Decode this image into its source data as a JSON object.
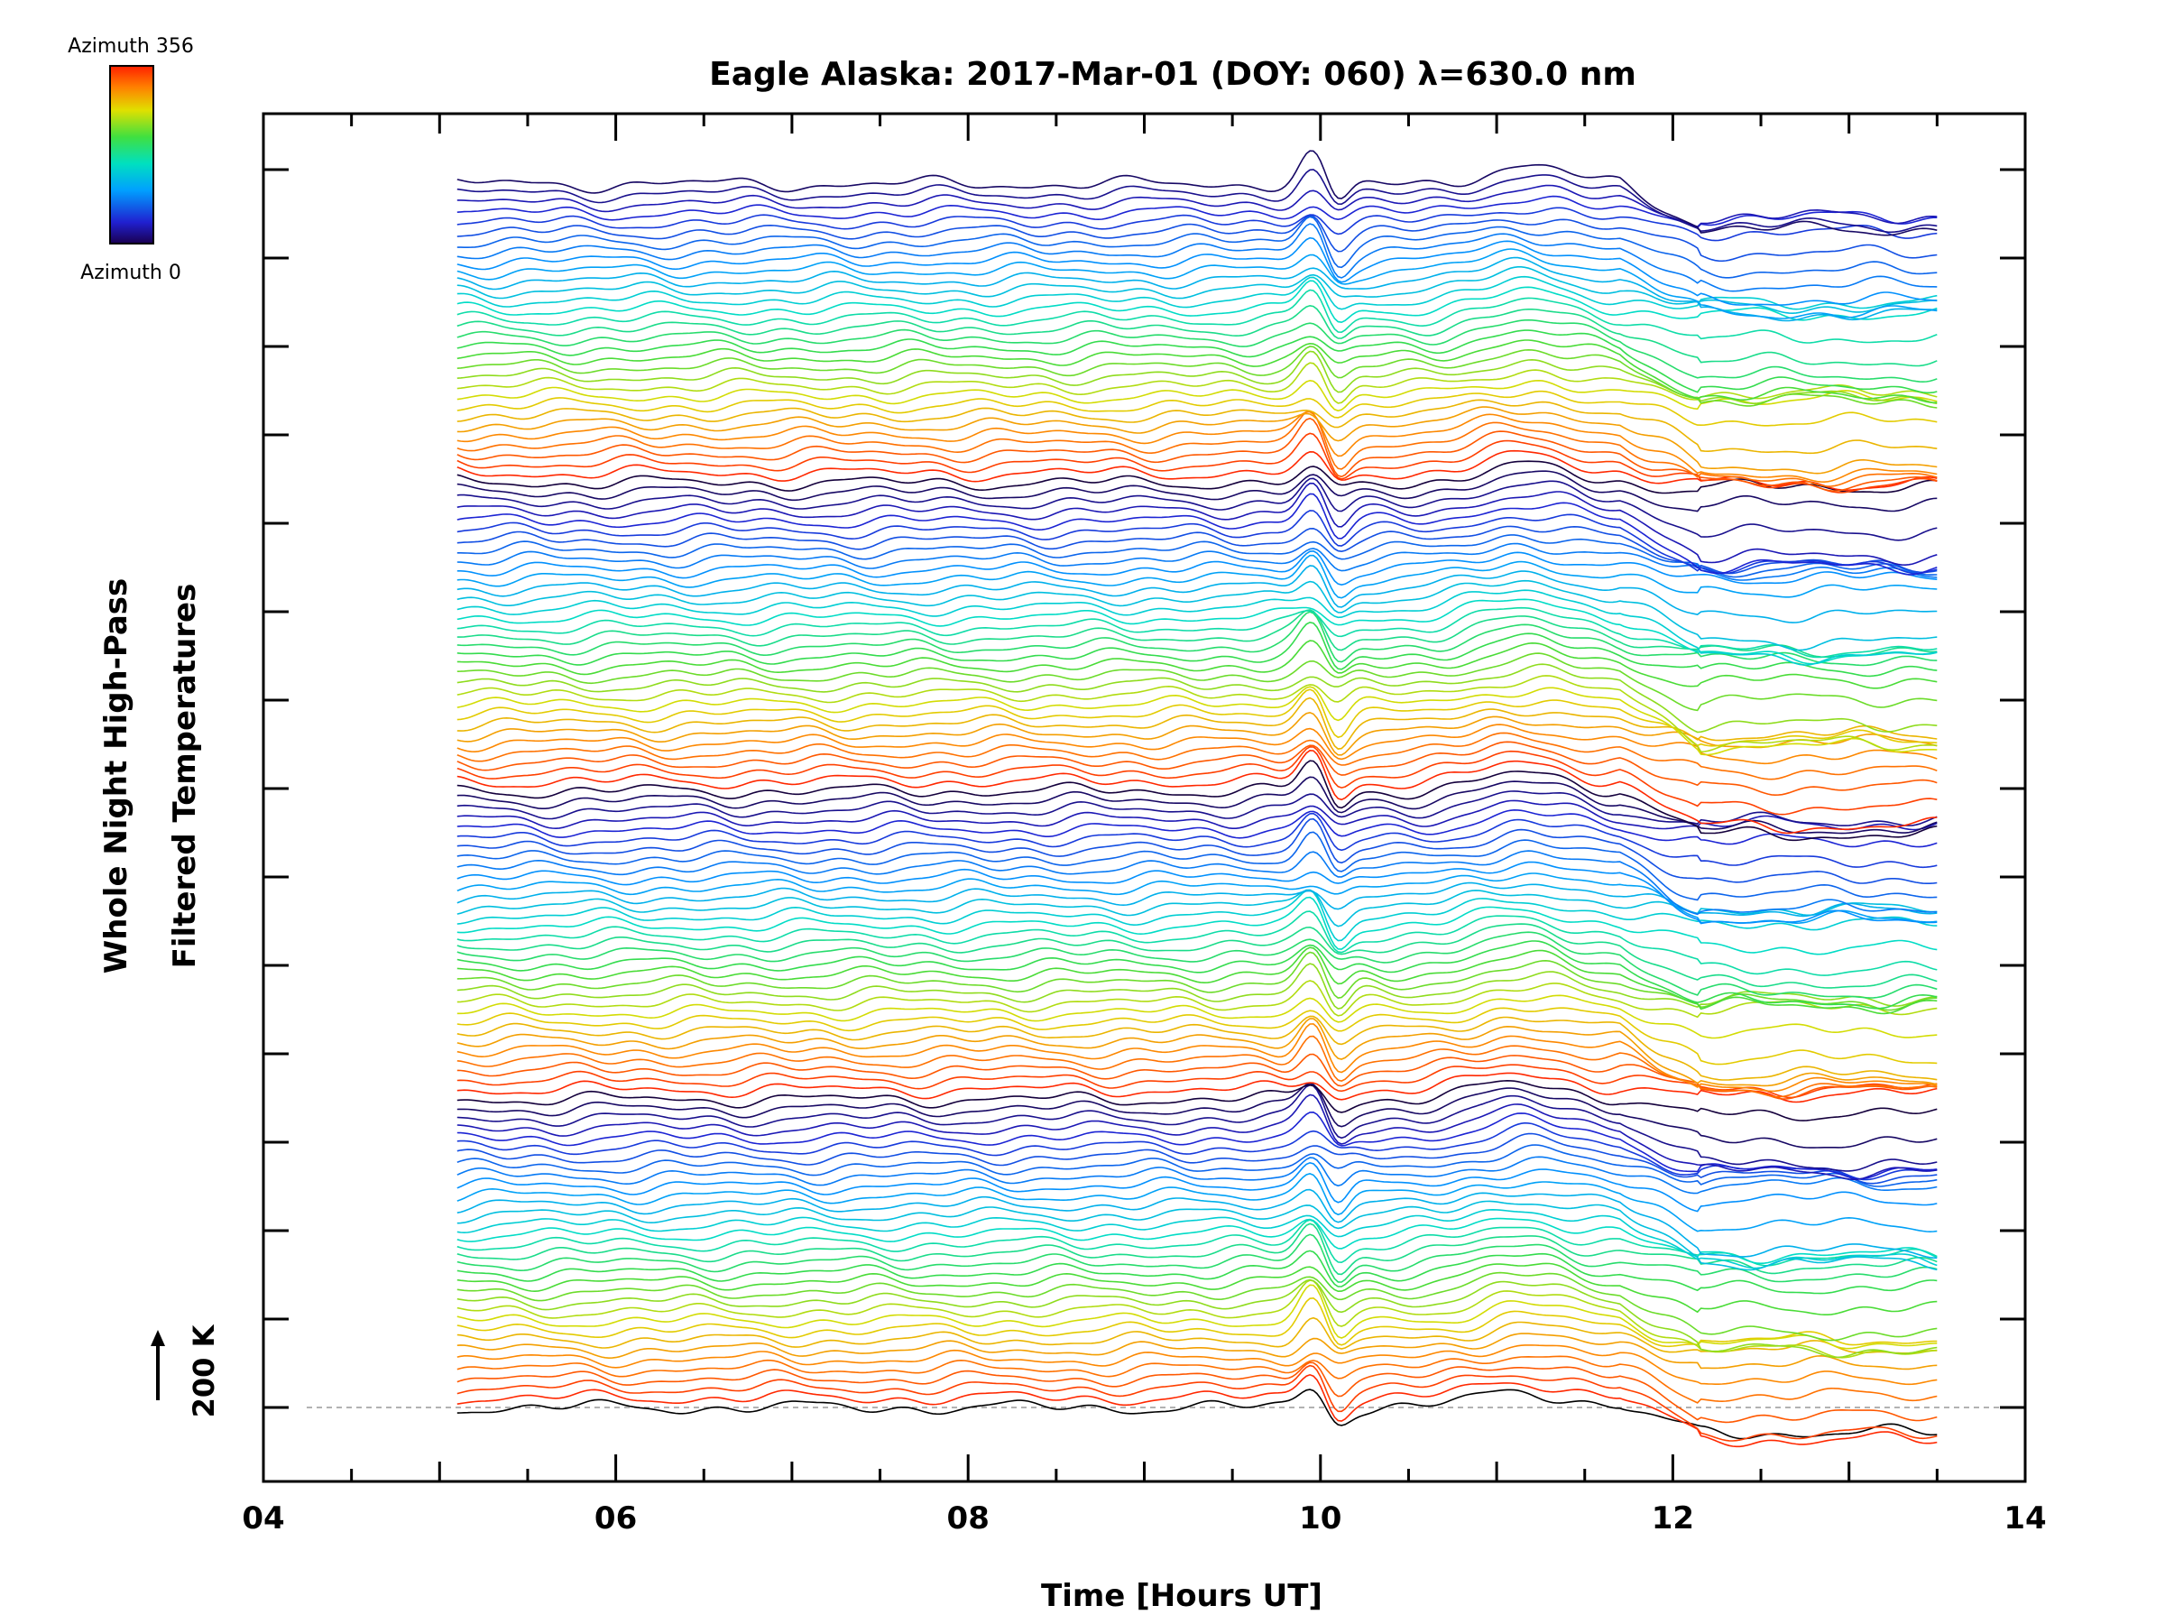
{
  "chart_data": {
    "type": "line",
    "title": "Eagle Alaska: 2017-Mar-01 (DOY: 060) λ=630.0 nm",
    "xlabel": "Time [Hours UT]",
    "ylabel_lines": [
      "Whole Night High-Pass",
      "Filtered Temperatures"
    ],
    "xlim": [
      4,
      14
    ],
    "x_ticks": [
      "04",
      "06",
      "08",
      "10",
      "12",
      "14"
    ],
    "x_start": 5.1,
    "x_end": 13.5,
    "series_count": 128,
    "series_color_by": "azimuth",
    "colorbar": {
      "top_label": "Azimuth 356",
      "bottom_label": "Azimuth 0",
      "range": [
        0,
        356
      ],
      "colormap": "rainbow"
    },
    "scale_bar": {
      "label": "200 K",
      "arrow": "up"
    },
    "baseline": {
      "style": "dashed",
      "color": "#999999"
    },
    "grid": false,
    "series_features": {
      "peak_hour": 9.95,
      "dip_hour": 10.1,
      "hump_hour": 11.15,
      "drop_hour": 11.7,
      "step_hour": 12.15
    },
    "colors": {
      "axis": "#000000",
      "background": "#ffffff"
    }
  }
}
